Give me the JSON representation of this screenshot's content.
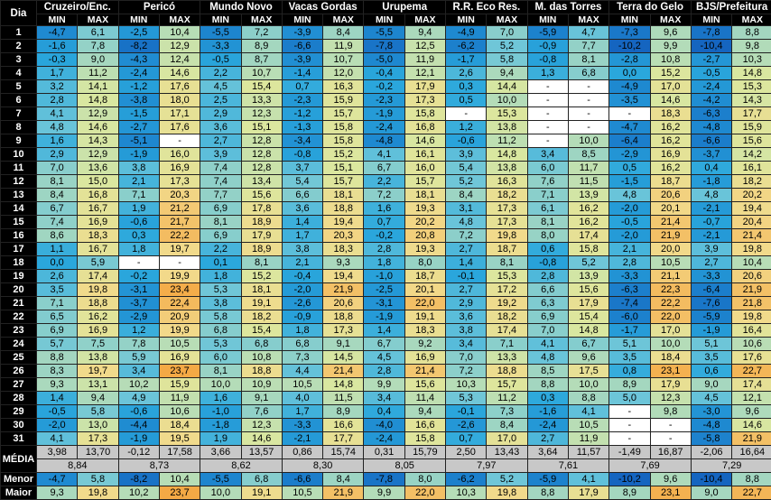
{
  "table": {
    "dia": "Dia",
    "min": "MIN",
    "max": "MAX",
    "stations": [
      "Cruzeiro/Enc.",
      "Pericó",
      "Mundo Novo",
      "Vacas Gordas",
      "Urupema",
      "R.R. Eco Res.",
      "M. das Torres",
      "Terra do Gelo",
      "BJS/Prefeitura"
    ],
    "rows": [
      [
        "1",
        "-4,7",
        "6,1",
        "-2,5",
        "10,4",
        "-5,5",
        "7,2",
        "-3,9",
        "8,4",
        "-5,5",
        "9,4",
        "-4,9",
        "7,0",
        "-5,9",
        "4,7",
        "-7,3",
        "9,6",
        "-7,8",
        "8,8"
      ],
      [
        "2",
        "-1,6",
        "7,8",
        "-8,2",
        "12,9",
        "-3,3",
        "8,9",
        "-6,6",
        "11,9",
        "-7,8",
        "12,5",
        "-6,2",
        "5,2",
        "-0,9",
        "7,7",
        "-10,2",
        "9,9",
        "-10,4",
        "9,8"
      ],
      [
        "3",
        "-0,3",
        "9,0",
        "-4,3",
        "12,4",
        "-0,5",
        "8,7",
        "-3,9",
        "10,7",
        "-5,0",
        "11,9",
        "-1,7",
        "5,8",
        "-0,8",
        "8,1",
        "-2,8",
        "10,8",
        "-2,7",
        "10,3"
      ],
      [
        "4",
        "1,7",
        "11,2",
        "-2,4",
        "14,6",
        "2,2",
        "10,7",
        "-1,4",
        "12,0",
        "-0,4",
        "12,1",
        "2,6",
        "9,4",
        "1,3",
        "6,8",
        "0,0",
        "15,2",
        "-0,5",
        "14,8"
      ],
      [
        "5",
        "3,2",
        "14,1",
        "-1,2",
        "17,6",
        "4,5",
        "15,4",
        "0,7",
        "16,3",
        "-0,2",
        "17,9",
        "0,3",
        "14,4",
        "-",
        "-",
        "-4,9",
        "17,0",
        "-2,4",
        "15,3"
      ],
      [
        "6",
        "2,8",
        "14,8",
        "-3,8",
        "18,0",
        "2,5",
        "13,3",
        "-2,3",
        "15,9",
        "-2,3",
        "17,3",
        "0,5",
        "10,0",
        "-",
        "-",
        "-3,5",
        "14,6",
        "-4,2",
        "14,3"
      ],
      [
        "7",
        "4,1",
        "12,9",
        "-1,5",
        "17,1",
        "2,9",
        "12,3",
        "-1,2",
        "15,7",
        "-1,9",
        "15,8",
        "-",
        "15,3",
        "-",
        "-",
        "-",
        "18,3",
        "-6,3",
        "17,7"
      ],
      [
        "8",
        "4,8",
        "14,6",
        "-2,7",
        "17,6",
        "3,6",
        "15,1",
        "-1,3",
        "15,8",
        "-2,4",
        "16,8",
        "1,2",
        "13,8",
        "-",
        "-",
        "-4,7",
        "16,2",
        "-4,8",
        "15,9"
      ],
      [
        "9",
        "1,6",
        "14,3",
        "-5,1",
        "-",
        "2,7",
        "12,8",
        "-3,4",
        "15,8",
        "-4,8",
        "14,6",
        "-0,6",
        "11,2",
        "-",
        "10,0",
        "-6,4",
        "16,2",
        "-6,6",
        "15,6"
      ],
      [
        "10",
        "2,9",
        "12,9",
        "-1,9",
        "16,0",
        "3,9",
        "12,8",
        "-0,8",
        "15,2",
        "4,1",
        "16,1",
        "3,9",
        "14,8",
        "3,4",
        "8,5",
        "-2,9",
        "16,9",
        "-3,7",
        "14,2"
      ],
      [
        "11",
        "7,0",
        "13,6",
        "3,8",
        "16,9",
        "7,4",
        "12,8",
        "3,7",
        "15,1",
        "6,7",
        "16,0",
        "5,4",
        "13,8",
        "6,0",
        "11,7",
        "0,5",
        "16,2",
        "0,4",
        "16,1"
      ],
      [
        "12",
        "8,1",
        "15,0",
        "2,1",
        "17,3",
        "7,4",
        "13,4",
        "5,4",
        "15,7",
        "2,2",
        "15,7",
        "5,2",
        "16,3",
        "7,6",
        "11,5",
        "-1,5",
        "18,7",
        "-1,8",
        "18,2"
      ],
      [
        "13",
        "8,4",
        "16,8",
        "7,1",
        "20,3",
        "7,7",
        "15,6",
        "6,6",
        "18,1",
        "7,2",
        "18,1",
        "8,4",
        "18,2",
        "7,1",
        "13,9",
        "4,8",
        "20,6",
        "4,8",
        "20,2"
      ],
      [
        "14",
        "6,7",
        "16,7",
        "1,9",
        "21,2",
        "6,9",
        "17,8",
        "3,6",
        "18,8",
        "1,6",
        "19,3",
        "3,1",
        "17,3",
        "6,1",
        "16,2",
        "-2,0",
        "20,1",
        "-2,1",
        "19,4"
      ],
      [
        "15",
        "7,4",
        "16,9",
        "-0,6",
        "21,7",
        "8,1",
        "18,9",
        "1,4",
        "19,4",
        "0,7",
        "20,2",
        "4,8",
        "17,3",
        "8,1",
        "16,2",
        "-0,5",
        "21,4",
        "-0,7",
        "20,4"
      ],
      [
        "16",
        "8,6",
        "18,3",
        "0,3",
        "22,2",
        "6,9",
        "17,9",
        "1,7",
        "20,3",
        "-0,2",
        "20,8",
        "7,2",
        "19,8",
        "8,0",
        "17,4",
        "-2,0",
        "21,9",
        "-2,1",
        "21,4"
      ],
      [
        "17",
        "1,1",
        "16,7",
        "1,8",
        "19,7",
        "2,2",
        "18,9",
        "3,8",
        "18,3",
        "2,8",
        "19,3",
        "2,7",
        "18,7",
        "0,6",
        "15,8",
        "2,1",
        "20,0",
        "3,9",
        "19,8"
      ],
      [
        "18",
        "0,0",
        "5,9",
        "-",
        "-",
        "0,1",
        "8,1",
        "2,1",
        "9,3",
        "1,8",
        "8,0",
        "1,4",
        "8,1",
        "-0,8",
        "5,2",
        "2,8",
        "10,5",
        "2,7",
        "10,4"
      ],
      [
        "19",
        "2,6",
        "17,4",
        "-0,2",
        "19,9",
        "1,8",
        "15,2",
        "-0,4",
        "19,4",
        "-1,0",
        "18,7",
        "-0,1",
        "15,3",
        "2,8",
        "13,9",
        "-3,3",
        "21,1",
        "-3,3",
        "20,6"
      ],
      [
        "20",
        "3,5",
        "19,8",
        "-3,1",
        "23,4",
        "5,3",
        "18,1",
        "-2,0",
        "21,9",
        "-2,5",
        "20,1",
        "2,7",
        "17,2",
        "6,6",
        "15,6",
        "-6,3",
        "22,3",
        "-6,4",
        "21,9"
      ],
      [
        "21",
        "7,1",
        "18,8",
        "-3,7",
        "22,4",
        "3,8",
        "19,1",
        "-2,6",
        "20,6",
        "-3,1",
        "22,0",
        "2,9",
        "19,2",
        "6,3",
        "17,9",
        "-7,4",
        "22,2",
        "-7,6",
        "21,8"
      ],
      [
        "22",
        "6,5",
        "16,2",
        "-2,9",
        "20,9",
        "5,8",
        "18,2",
        "-0,9",
        "18,8",
        "-1,9",
        "19,1",
        "3,6",
        "18,2",
        "6,9",
        "15,4",
        "-6,0",
        "22,0",
        "-5,9",
        "19,8"
      ],
      [
        "23",
        "6,9",
        "16,9",
        "1,2",
        "19,9",
        "6,8",
        "15,4",
        "1,8",
        "17,3",
        "1,4",
        "18,3",
        "3,8",
        "17,4",
        "7,0",
        "14,8",
        "-1,7",
        "17,0",
        "-1,9",
        "16,4"
      ],
      [
        "24",
        "5,7",
        "7,5",
        "7,8",
        "10,5",
        "5,3",
        "6,8",
        "6,8",
        "9,1",
        "6,7",
        "9,2",
        "3,4",
        "7,1",
        "4,1",
        "6,7",
        "5,1",
        "10,0",
        "5,1",
        "10,6"
      ],
      [
        "25",
        "8,8",
        "13,8",
        "5,9",
        "16,9",
        "6,0",
        "10,8",
        "7,3",
        "14,5",
        "4,5",
        "16,9",
        "7,0",
        "13,3",
        "4,8",
        "9,6",
        "3,5",
        "18,4",
        "3,5",
        "17,6"
      ],
      [
        "26",
        "8,3",
        "19,7",
        "3,4",
        "23,7",
        "8,1",
        "18,8",
        "4,4",
        "21,4",
        "2,8",
        "21,4",
        "7,2",
        "18,8",
        "8,5",
        "17,5",
        "0,8",
        "23,1",
        "0,6",
        "22,7"
      ],
      [
        "27",
        "9,3",
        "13,1",
        "10,2",
        "15,9",
        "10,0",
        "10,9",
        "10,5",
        "14,8",
        "9,9",
        "15,6",
        "10,3",
        "15,7",
        "8,8",
        "10,0",
        "8,9",
        "17,9",
        "9,0",
        "17,4"
      ],
      [
        "28",
        "1,4",
        "9,4",
        "4,9",
        "11,9",
        "1,6",
        "9,1",
        "4,0",
        "11,5",
        "3,4",
        "11,4",
        "5,3",
        "11,2",
        "0,3",
        "8,8",
        "5,0",
        "12,3",
        "4,5",
        "12,1"
      ],
      [
        "29",
        "-0,5",
        "5,8",
        "-0,6",
        "10,6",
        "-1,0",
        "7,6",
        "1,7",
        "8,9",
        "0,4",
        "9,4",
        "-0,1",
        "7,3",
        "-1,6",
        "4,1",
        "-",
        "9,8",
        "-3,0",
        "9,6"
      ],
      [
        "30",
        "-2,0",
        "13,0",
        "-4,4",
        "18,4",
        "-1,8",
        "12,3",
        "-3,3",
        "16,6",
        "-4,0",
        "16,6",
        "-2,6",
        "8,4",
        "-2,4",
        "10,5",
        "-",
        "-",
        "-4,8",
        "14,6"
      ],
      [
        "31",
        "4,1",
        "17,3",
        "-1,9",
        "19,5",
        "1,9",
        "14,6",
        "-2,1",
        "17,7",
        "-2,4",
        "15,8",
        "0,7",
        "17,0",
        "2,7",
        "11,9",
        "-",
        "-",
        "-5,8",
        "21,9"
      ]
    ],
    "media_label": "MÉDIA",
    "media": [
      "3,98",
      "13,70",
      "-0,12",
      "17,58",
      "3,66",
      "13,57",
      "0,86",
      "15,74",
      "0,31",
      "15,79",
      "2,50",
      "13,43",
      "3,64",
      "11,57",
      "-1,49",
      "16,87",
      "-2,06",
      "16,64"
    ],
    "media_avg": [
      "8,84",
      "8,73",
      "8,62",
      "8,30",
      "8,05",
      "7,97",
      "7,61",
      "7,69",
      "7,29"
    ],
    "menor_label": "Menor",
    "menor": [
      "-4,7",
      "5,8",
      "-8,2",
      "10,4",
      "-5,5",
      "6,8",
      "-6,6",
      "8,4",
      "-7,8",
      "8,0",
      "-6,2",
      "5,2",
      "-5,9",
      "4,1",
      "-10,2",
      "9,6",
      "-10,4",
      "8,8"
    ],
    "maior_label": "Maior",
    "maior": [
      "9,3",
      "19,8",
      "10,2",
      "23,7",
      "10,0",
      "19,1",
      "10,5",
      "21,9",
      "9,9",
      "22,0",
      "10,3",
      "19,8",
      "8,8",
      "17,9",
      "8,9",
      "23,1",
      "9,0",
      "22,7"
    ]
  }
}
